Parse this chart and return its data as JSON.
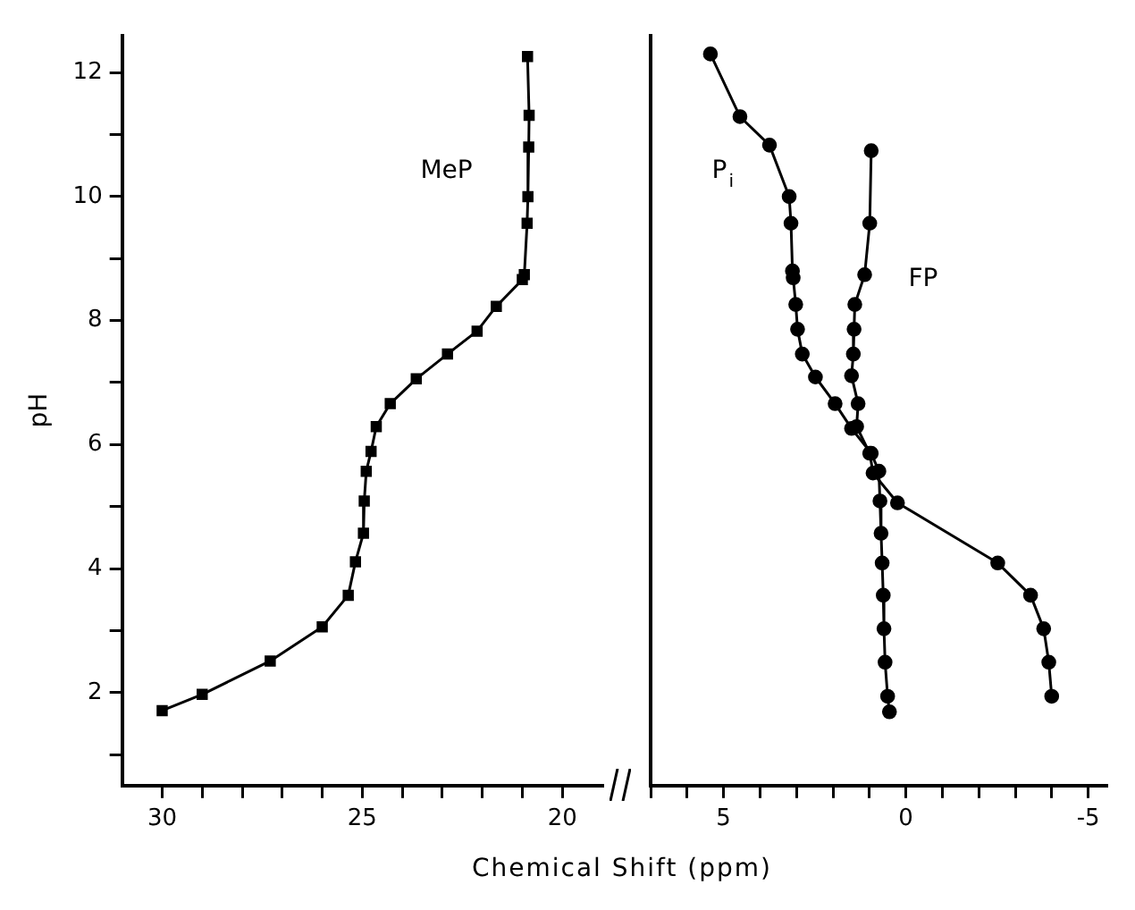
{
  "chart_data": [
    {
      "type": "line",
      "xlabel": "Chemical Shift  (ppm)",
      "ylabel": "pH",
      "xlim": [
        31,
        19
      ],
      "ylim": [
        0.5,
        12.6
      ],
      "xticks": [
        30,
        {
          "value": 29,
          "label": null
        },
        {
          "value": 28,
          "label": null
        },
        {
          "value": 27,
          "label": null
        },
        {
          "value": 26,
          "label": null
        },
        25,
        {
          "value": 24,
          "label": null
        },
        {
          "value": 23,
          "label": null
        },
        {
          "value": 22,
          "label": null
        },
        {
          "value": 21,
          "label": null
        },
        20
      ],
      "yticks": [
        {
          "value": 1,
          "label": null
        },
        2,
        {
          "value": 3,
          "label": null
        },
        4,
        {
          "value": 5,
          "label": null
        },
        6,
        {
          "value": 7,
          "label": null
        },
        8,
        {
          "value": 9,
          "label": null
        },
        10,
        {
          "value": 11,
          "label": null
        },
        12
      ],
      "marker": "square",
      "grid": false,
      "legend": false,
      "series": [
        {
          "name": "MeP",
          "color": "#000000",
          "x": [
            20.87,
            20.83,
            20.84,
            20.86,
            20.88,
            20.95,
            21.0,
            21.65,
            22.13,
            22.87,
            23.65,
            24.3,
            24.65,
            24.78,
            24.9,
            24.95,
            24.97,
            25.17,
            25.35,
            26.0,
            27.3,
            29.0,
            30.0
          ],
          "values": [
            12.26,
            11.31,
            10.8,
            10.0,
            9.57,
            8.74,
            8.66,
            8.23,
            7.83,
            7.46,
            7.06,
            6.66,
            6.29,
            5.89,
            5.57,
            5.09,
            4.57,
            4.11,
            3.57,
            3.06,
            2.51,
            1.97,
            1.71
          ]
        }
      ]
    },
    {
      "type": "line",
      "xlim": [
        7,
        -5.5
      ],
      "ylim": [
        0.5,
        12.6
      ],
      "tick_labels": "x",
      "xticks": [
        {
          "value": 7,
          "label": null
        },
        {
          "value": 6,
          "label": null
        },
        5,
        {
          "value": 4,
          "label": null
        },
        {
          "value": 3,
          "label": null
        },
        {
          "value": 2,
          "label": null
        },
        {
          "value": 1,
          "label": null
        },
        0,
        {
          "value": -1,
          "label": null
        },
        {
          "value": -2,
          "label": null
        },
        {
          "value": -3,
          "label": null
        },
        {
          "value": -4,
          "label": null
        },
        -5
      ],
      "marker": "circle",
      "grid": false,
      "legend": false,
      "series": [
        {
          "name": "P$_{i}$",
          "color": "#000000",
          "x": [
            5.36,
            4.55,
            3.74,
            3.2,
            3.15,
            3.11,
            3.09,
            3.02,
            2.97,
            2.84,
            2.48,
            1.94,
            1.49,
            0.95,
            0.74,
            0.71,
            0.68,
            0.65,
            0.62,
            0.6,
            0.57,
            0.5,
            0.45
          ],
          "values": [
            12.3,
            11.29,
            10.83,
            10.0,
            9.57,
            8.8,
            8.69,
            8.26,
            7.86,
            7.46,
            7.09,
            6.66,
            6.26,
            5.86,
            5.57,
            5.09,
            4.57,
            4.09,
            3.57,
            3.03,
            2.49,
            1.94,
            1.69
          ]
        },
        {
          "name": "FP",
          "color": "#000000",
          "x": [
            0.95,
            0.99,
            1.13,
            1.4,
            1.42,
            1.44,
            1.49,
            1.31,
            1.35,
            0.99,
            0.9,
            0.23,
            -2.52,
            -3.42,
            -3.78,
            -3.92,
            -4.0
          ],
          "values": [
            10.74,
            9.57,
            8.74,
            8.26,
            7.86,
            7.46,
            7.11,
            6.66,
            6.29,
            5.86,
            5.54,
            5.06,
            4.09,
            3.57,
            3.03,
            2.49,
            1.94
          ]
        }
      ]
    }
  ]
}
